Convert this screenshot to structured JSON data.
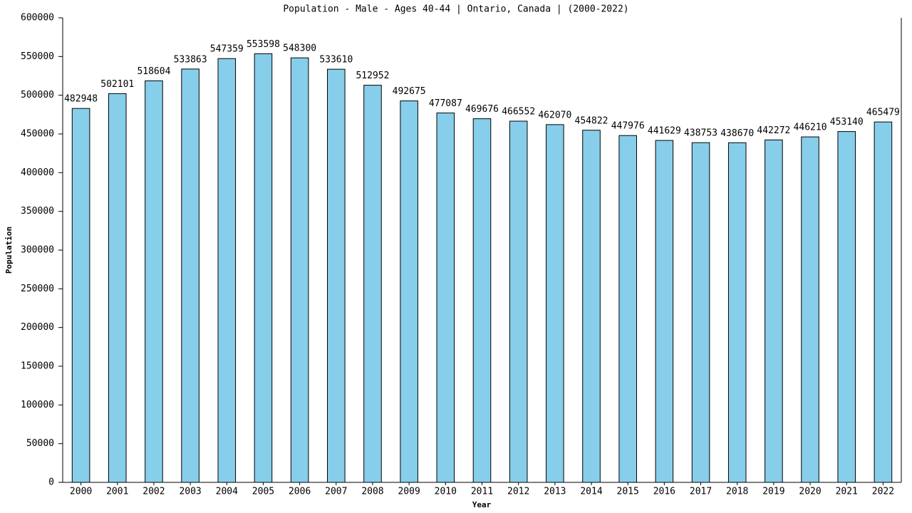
{
  "chart_data": {
    "type": "bar",
    "title": "Population - Male - Ages 40-44 | Ontario, Canada |  (2000-2022)",
    "x_label": "Year",
    "y_label": "Population",
    "categories": [
      "2000",
      "2001",
      "2002",
      "2003",
      "2004",
      "2005",
      "2006",
      "2007",
      "2008",
      "2009",
      "2010",
      "2011",
      "2012",
      "2013",
      "2014",
      "2015",
      "2016",
      "2017",
      "2018",
      "2019",
      "2020",
      "2021",
      "2022"
    ],
    "values": [
      482948,
      502101,
      518604,
      533863,
      547359,
      553598,
      548300,
      533610,
      512952,
      492675,
      477087,
      469676,
      466552,
      462070,
      454822,
      447976,
      441629,
      438753,
      438670,
      442272,
      446210,
      453140,
      465479
    ],
    "color": "#87ceeb",
    "ylim": [
      0,
      600000
    ],
    "yticks": [
      0,
      50000,
      100000,
      150000,
      200000,
      250000,
      300000,
      350000,
      400000,
      450000,
      500000,
      550000,
      600000
    ]
  }
}
